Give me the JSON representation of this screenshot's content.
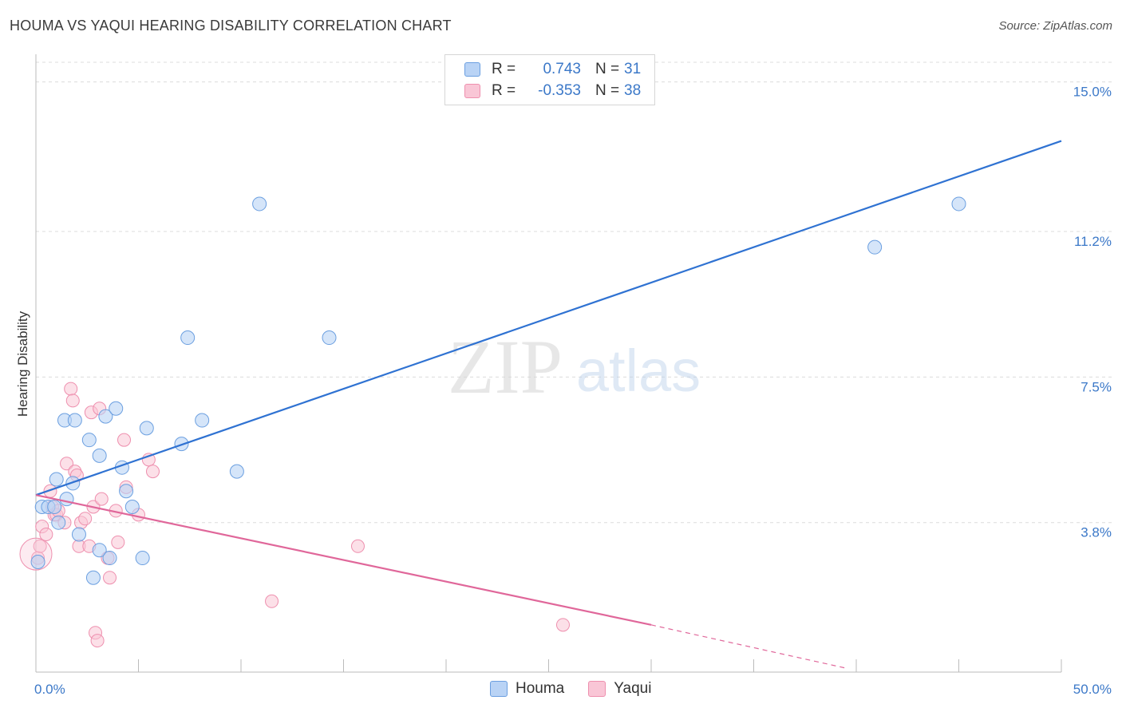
{
  "header": {
    "title": "HOUMA VS YAQUI HEARING DISABILITY CORRELATION CHART",
    "source": "Source: ZipAtlas.com"
  },
  "watermark": {
    "zip": "ZIP",
    "atlas": "atlas"
  },
  "legend": {
    "rows": [
      {
        "r_label": "R =",
        "r_value": "0.743",
        "n_label": "N =",
        "n_value": "31",
        "fill": "#b9d3f5",
        "stroke": "#6b9fe0"
      },
      {
        "r_label": "R =",
        "r_value": "-0.353",
        "n_label": "N =",
        "n_value": "38",
        "fill": "#f9c6d6",
        "stroke": "#ee8fae"
      }
    ],
    "bottom": [
      {
        "label": "Houma",
        "fill": "#b9d3f5",
        "stroke": "#6b9fe0"
      },
      {
        "label": "Yaqui",
        "fill": "#f9c6d6",
        "stroke": "#ee8fae"
      }
    ]
  },
  "colors": {
    "houma_fill": "#b9d3f5",
    "houma_stroke": "#6b9fe0",
    "houma_line": "#2f72d2",
    "yaqui_fill": "#f9c6d6",
    "yaqui_stroke": "#ee8fae",
    "yaqui_line": "#e0679a",
    "tick_label": "#3b78c8",
    "grid": "#dcdcdc"
  },
  "chart_data": {
    "type": "scatter",
    "title": "HOUMA VS YAQUI HEARING DISABILITY CORRELATION CHART",
    "ylabel": "Hearing Disability",
    "xlabel": "",
    "xlim": [
      0,
      50
    ],
    "ylim": [
      0,
      15.5
    ],
    "x_tick_labels": [
      {
        "value": 0,
        "label": "0.0%"
      },
      {
        "value": 50,
        "label": "50.0%"
      }
    ],
    "y_ticks": [
      {
        "value": 3.8,
        "label": "3.8%"
      },
      {
        "value": 7.5,
        "label": "7.5%"
      },
      {
        "value": 11.2,
        "label": "11.2%"
      },
      {
        "value": 15.0,
        "label": "15.0%"
      }
    ],
    "grid": true,
    "legend_position": "top-center",
    "series": [
      {
        "name": "Houma",
        "points": [
          [
            0.1,
            2.8
          ],
          [
            0.3,
            4.2
          ],
          [
            0.6,
            4.2
          ],
          [
            0.9,
            4.2
          ],
          [
            1.0,
            4.9
          ],
          [
            1.1,
            3.8
          ],
          [
            1.4,
            6.4
          ],
          [
            1.5,
            4.4
          ],
          [
            1.8,
            4.8
          ],
          [
            1.9,
            6.4
          ],
          [
            2.1,
            3.5
          ],
          [
            2.6,
            5.9
          ],
          [
            2.8,
            2.4
          ],
          [
            3.1,
            3.1
          ],
          [
            3.1,
            5.5
          ],
          [
            3.4,
            6.5
          ],
          [
            3.6,
            2.9
          ],
          [
            3.9,
            6.7
          ],
          [
            4.2,
            5.2
          ],
          [
            4.4,
            4.6
          ],
          [
            4.7,
            4.2
          ],
          [
            5.2,
            2.9
          ],
          [
            5.4,
            6.2
          ],
          [
            7.1,
            5.8
          ],
          [
            7.4,
            8.5
          ],
          [
            8.1,
            6.4
          ],
          [
            9.8,
            5.1
          ],
          [
            10.9,
            11.9
          ],
          [
            14.3,
            8.5
          ],
          [
            40.9,
            10.8
          ],
          [
            45.0,
            11.9
          ]
        ],
        "trend": {
          "x": [
            0,
            50
          ],
          "y": [
            4.5,
            13.5
          ]
        }
      },
      {
        "name": "Yaqui",
        "points": [
          [
            0.1,
            2.9
          ],
          [
            0.2,
            3.2
          ],
          [
            0.3,
            3.7
          ],
          [
            0.5,
            3.5
          ],
          [
            0.7,
            4.6
          ],
          [
            0.8,
            4.2
          ],
          [
            0.9,
            4.0
          ],
          [
            1.0,
            4.0
          ],
          [
            1.1,
            4.1
          ],
          [
            1.4,
            3.8
          ],
          [
            1.5,
            5.3
          ],
          [
            1.7,
            7.2
          ],
          [
            1.8,
            6.9
          ],
          [
            1.9,
            5.1
          ],
          [
            2.0,
            5.0
          ],
          [
            2.1,
            3.2
          ],
          [
            2.2,
            3.8
          ],
          [
            2.4,
            3.9
          ],
          [
            2.6,
            3.2
          ],
          [
            2.7,
            6.6
          ],
          [
            2.8,
            4.2
          ],
          [
            2.9,
            1.0
          ],
          [
            3.0,
            0.8
          ],
          [
            3.1,
            6.7
          ],
          [
            3.2,
            4.4
          ],
          [
            3.5,
            2.9
          ],
          [
            3.6,
            2.4
          ],
          [
            3.9,
            4.1
          ],
          [
            4.0,
            3.3
          ],
          [
            4.3,
            5.9
          ],
          [
            4.4,
            4.7
          ],
          [
            5.0,
            4.0
          ],
          [
            5.5,
            5.4
          ],
          [
            5.7,
            5.1
          ],
          [
            11.5,
            1.8
          ],
          [
            15.7,
            3.2
          ],
          [
            25.7,
            1.2
          ],
          [
            0.0,
            3.0
          ]
        ],
        "trend": {
          "x": [
            0,
            30
          ],
          "y": [
            4.5,
            1.2
          ],
          "dashed_to": {
            "x": 39.5,
            "y": 0.1
          }
        }
      }
    ]
  }
}
